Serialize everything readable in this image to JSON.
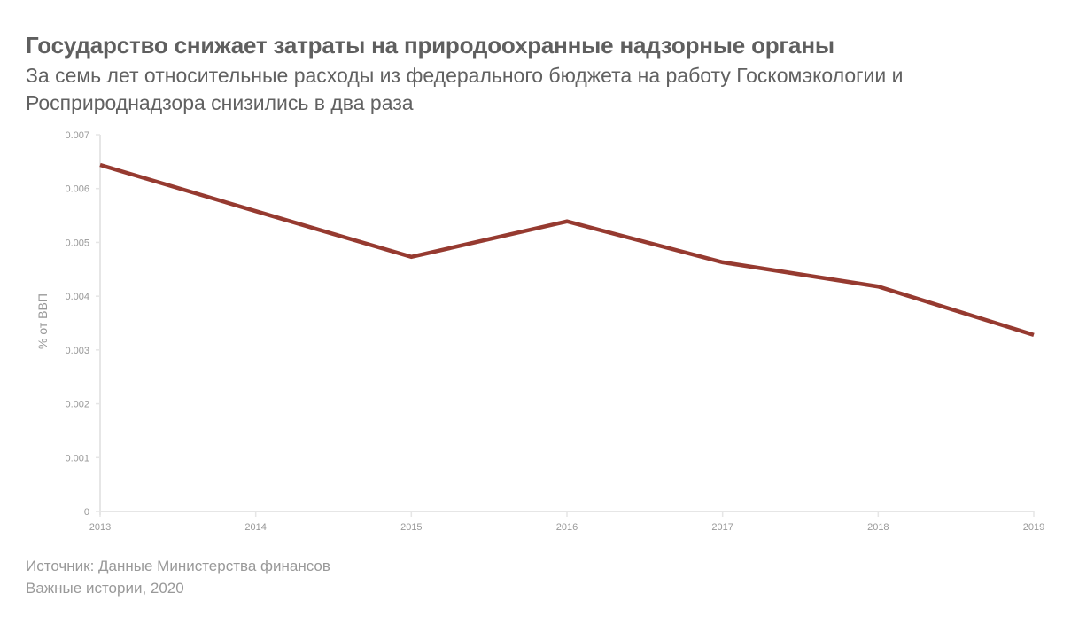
{
  "header": {
    "title": "Государство снижает затраты на природоохранные надзорные органы",
    "subtitle_line1": "За семь лет относительные расходы из федерального бюджета на работу Госкомэкологии и",
    "subtitle_line2": "Росприроднадзора снизились в два раза"
  },
  "footer": {
    "source": "Источник: Данные Министерства финансов",
    "credit": "Важные истории, 2020"
  },
  "colors": {
    "line": "#963a30",
    "axis": "#e6e6e6",
    "text": "#999999"
  },
  "chart_data": {
    "type": "line",
    "title": "Государство снижает затраты на природоохранные надзорные органы",
    "xlabel": "",
    "ylabel": "% от ВВП",
    "x": [
      "2013",
      "2014",
      "2015",
      "2016",
      "2017",
      "2018",
      "2019"
    ],
    "series": [
      {
        "name": "% от ВВП",
        "values": [
          0.00644,
          0.00558,
          0.00473,
          0.00539,
          0.00463,
          0.00418,
          0.00328
        ]
      }
    ],
    "ylim": [
      0,
      0.007
    ],
    "yticks": [
      "0",
      "0.001",
      "0.002",
      "0.003",
      "0.004",
      "0.005",
      "0.006",
      "0.007"
    ],
    "grid": false,
    "legend": "none"
  }
}
